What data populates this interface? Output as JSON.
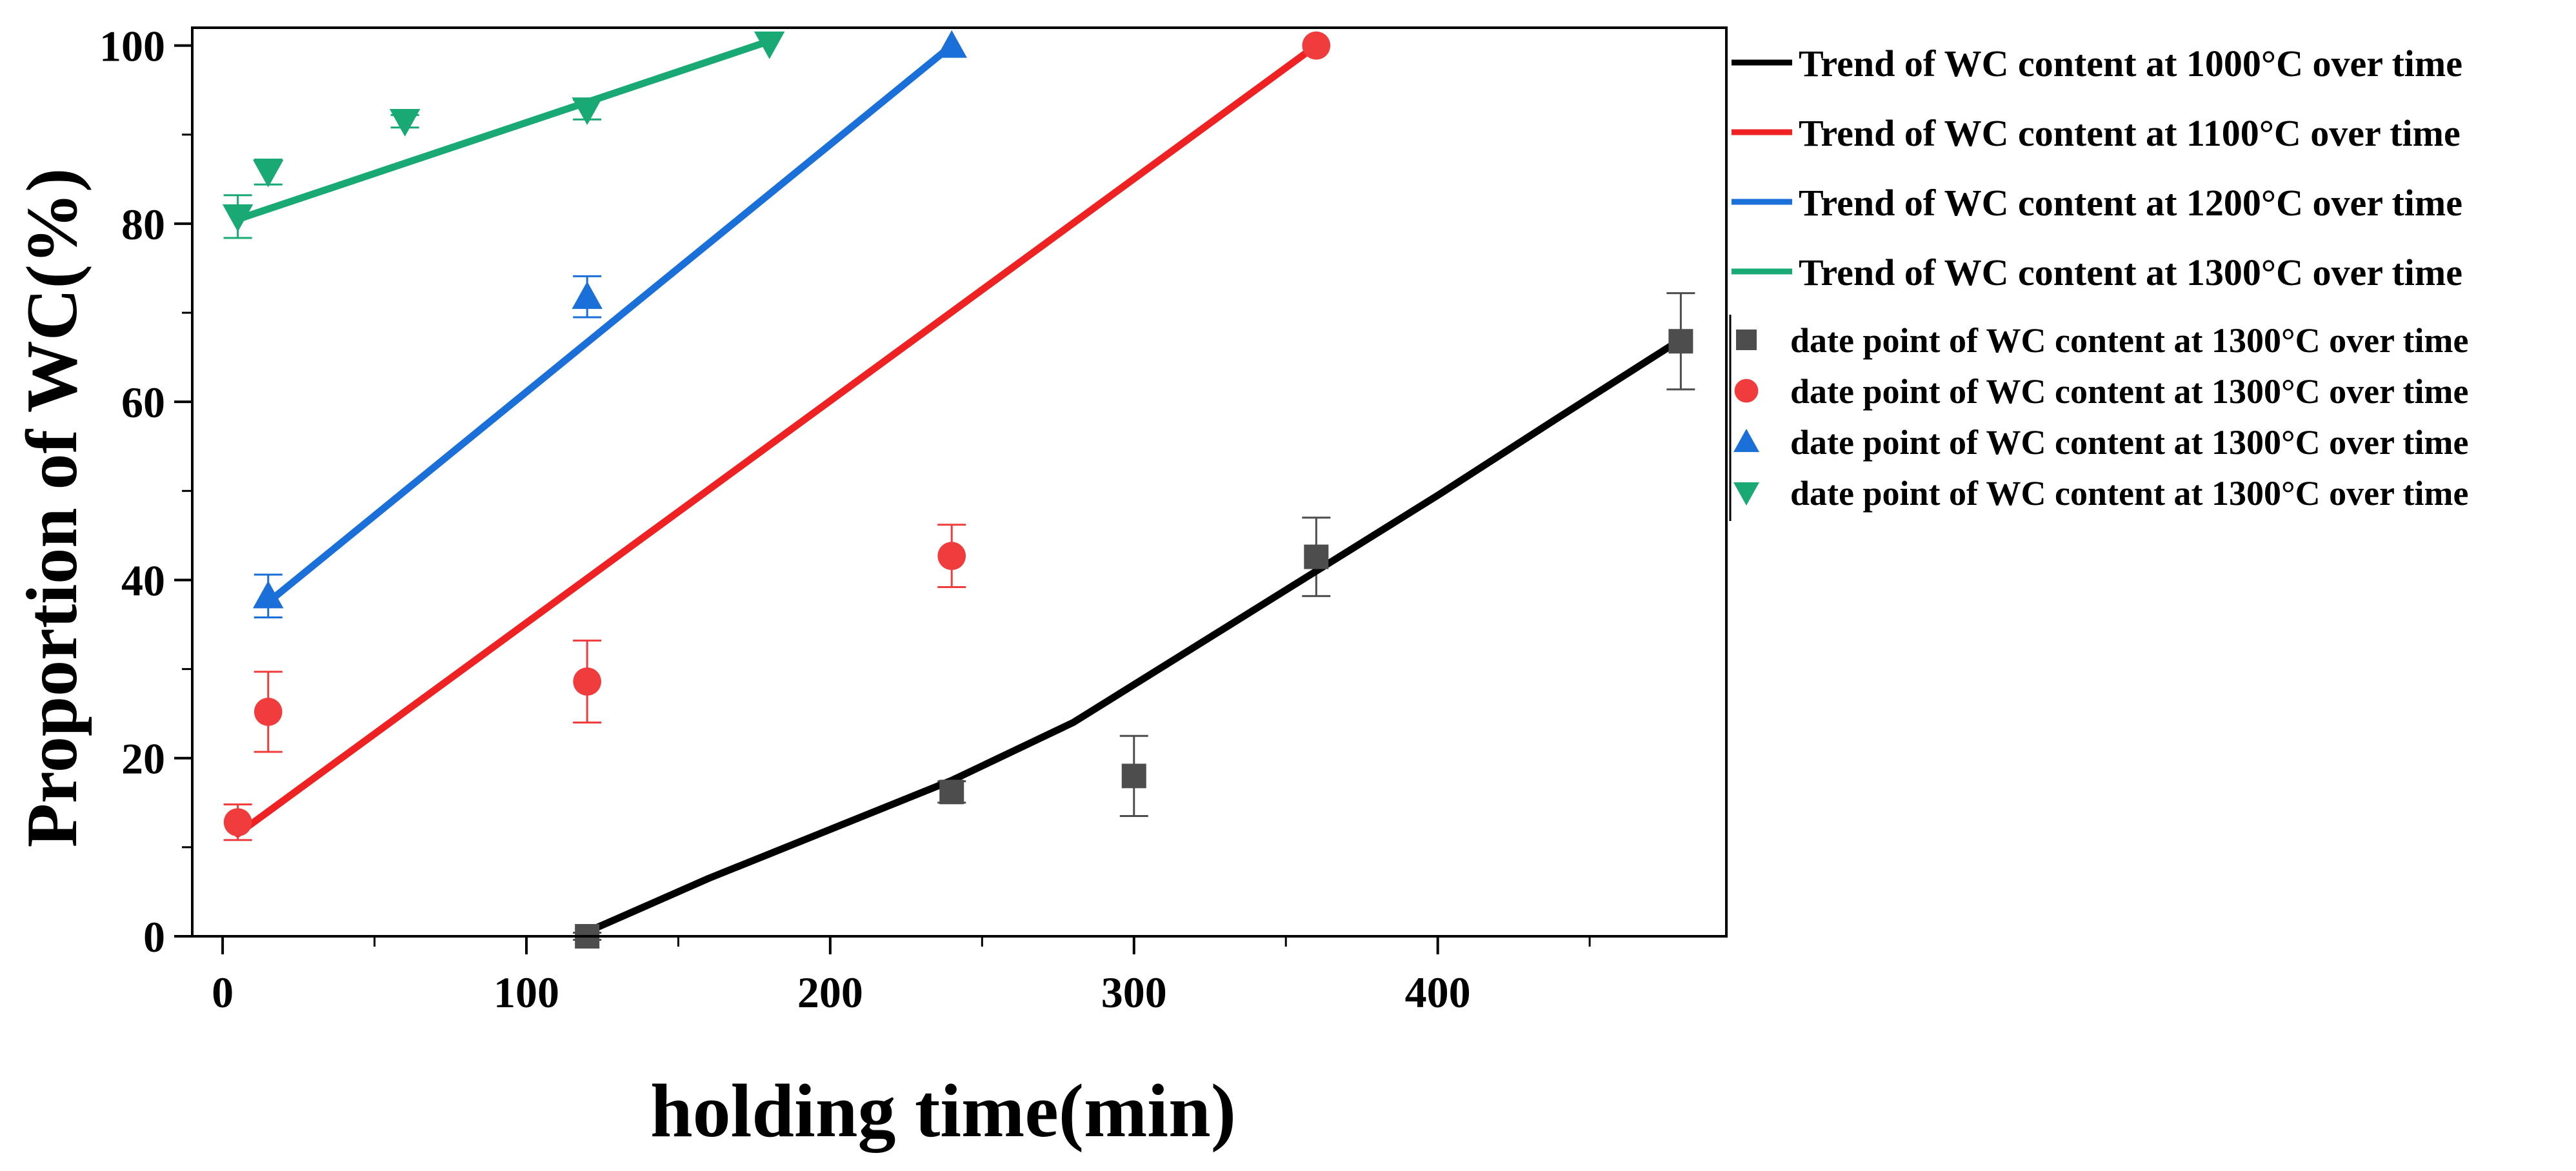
{
  "chart_data": {
    "type": "scatter",
    "xlabel": "holding time(min)",
    "ylabel": "Proportion of WC(%)",
    "xlim": [
      -10,
      495
    ],
    "ylim": [
      0,
      102
    ],
    "xticks": [
      0,
      100,
      200,
      300,
      400
    ],
    "yticks": [
      0,
      20,
      40,
      60,
      80,
      100
    ],
    "grid": false,
    "legend_position": "right, outside plot",
    "trend_lines": [
      {
        "name": "Trend of WC content at 1000°C over time",
        "color": "#000000",
        "x": [
          120,
          160,
          200,
          240,
          280,
          320,
          360,
          400,
          440,
          480
        ],
        "y": [
          0.5,
          6.5,
          12,
          17.5,
          24,
          32.5,
          41,
          49.5,
          58.3,
          67
        ]
      },
      {
        "name": "Trend of WC content at 1100°C over time",
        "color": "#ee2222",
        "x": [
          5,
          360
        ],
        "y": [
          11.5,
          100
        ]
      },
      {
        "name": "Trend of WC content at 1200°C over time",
        "color": "#1a6fd8",
        "x": [
          15,
          240
        ],
        "y": [
          37.5,
          100
        ]
      },
      {
        "name": "Trend of WC content at 1300°C over time",
        "color": "#19a974",
        "x": [
          5,
          180
        ],
        "y": [
          80.5,
          100.5
        ]
      }
    ],
    "data_series": [
      {
        "name": "date point of WC content at 1300°C over time",
        "marker": "square",
        "color": "#4d4d4d",
        "x": [
          120,
          240,
          300,
          360,
          480
        ],
        "y": [
          0,
          16.2,
          18,
          42.6,
          66.8
        ],
        "err": [
          0.4,
          1.2,
          4.5,
          4.4,
          5.4
        ]
      },
      {
        "name": "date point of WC content at 1300°C over time",
        "marker": "circle",
        "color": "#f03c3c",
        "x": [
          5,
          15,
          120,
          240,
          360
        ],
        "y": [
          12.8,
          25.2,
          28.6,
          42.7,
          100
        ],
        "err": [
          2.0,
          4.5,
          4.6,
          3.5,
          0
        ]
      },
      {
        "name": "date point of WC content at 1300°C over time",
        "marker": "triangle-up",
        "color": "#1a6fd8",
        "x": [
          15,
          120,
          240
        ],
        "y": [
          38.2,
          71.8,
          100
        ],
        "err": [
          2.4,
          2.3,
          0
        ]
      },
      {
        "name": "date point of WC content at 1300°C over time",
        "marker": "triangle-down",
        "color": "#19a974",
        "x": [
          5,
          15,
          60,
          120,
          180
        ],
        "y": [
          80.8,
          85.8,
          91.5,
          92.8,
          100.2
        ],
        "err": [
          2.4,
          1.4,
          0.7,
          1.1,
          0
        ]
      }
    ]
  }
}
